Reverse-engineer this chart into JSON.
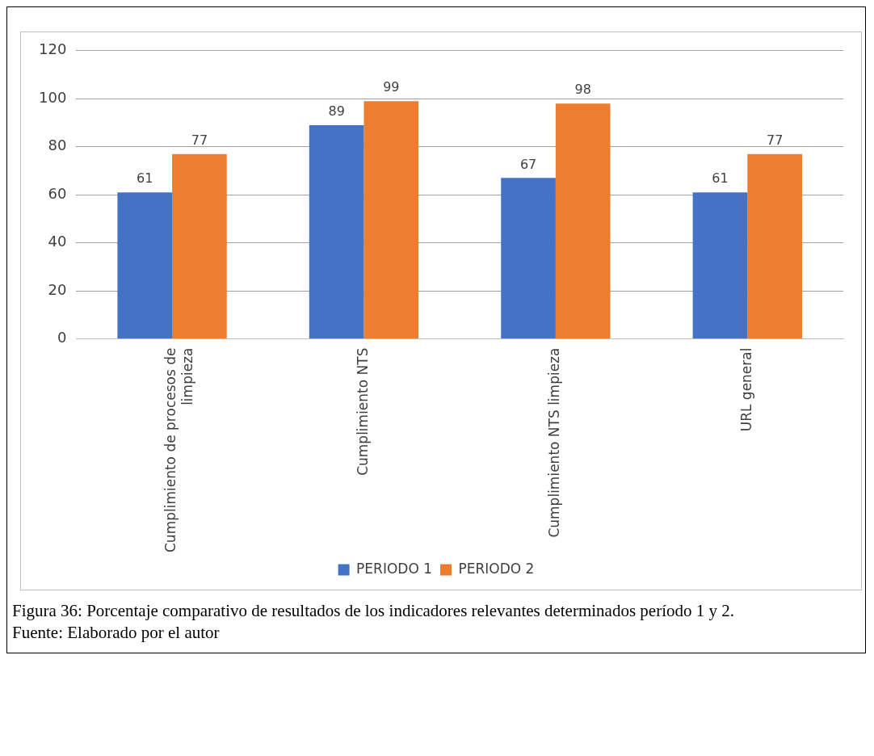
{
  "chart_data": {
    "type": "bar",
    "categories": [
      "Cumplimiento de procesos de limpieza",
      "Cumplimiento NTS",
      "Cumplimiento NTS limpieza",
      "URL general"
    ],
    "series": [
      {
        "name": "PERIODO 1",
        "color": "#4472c4",
        "values": [
          61,
          89,
          67,
          61
        ]
      },
      {
        "name": "PERIODO 2",
        "color": "#ed7d31",
        "values": [
          77,
          99,
          98,
          77
        ]
      }
    ],
    "ylim": [
      0,
      120
    ],
    "yticks": [
      0,
      20,
      40,
      60,
      80,
      100,
      120
    ],
    "grid": "y",
    "legend": "bottom",
    "data_labels": true,
    "annotations": [
      "Figura 36: Porcentaje comparativo de resultados de los indicadores relevantes determinados período 1 y 2.",
      "Fuente: Elaborado por el autor"
    ]
  }
}
